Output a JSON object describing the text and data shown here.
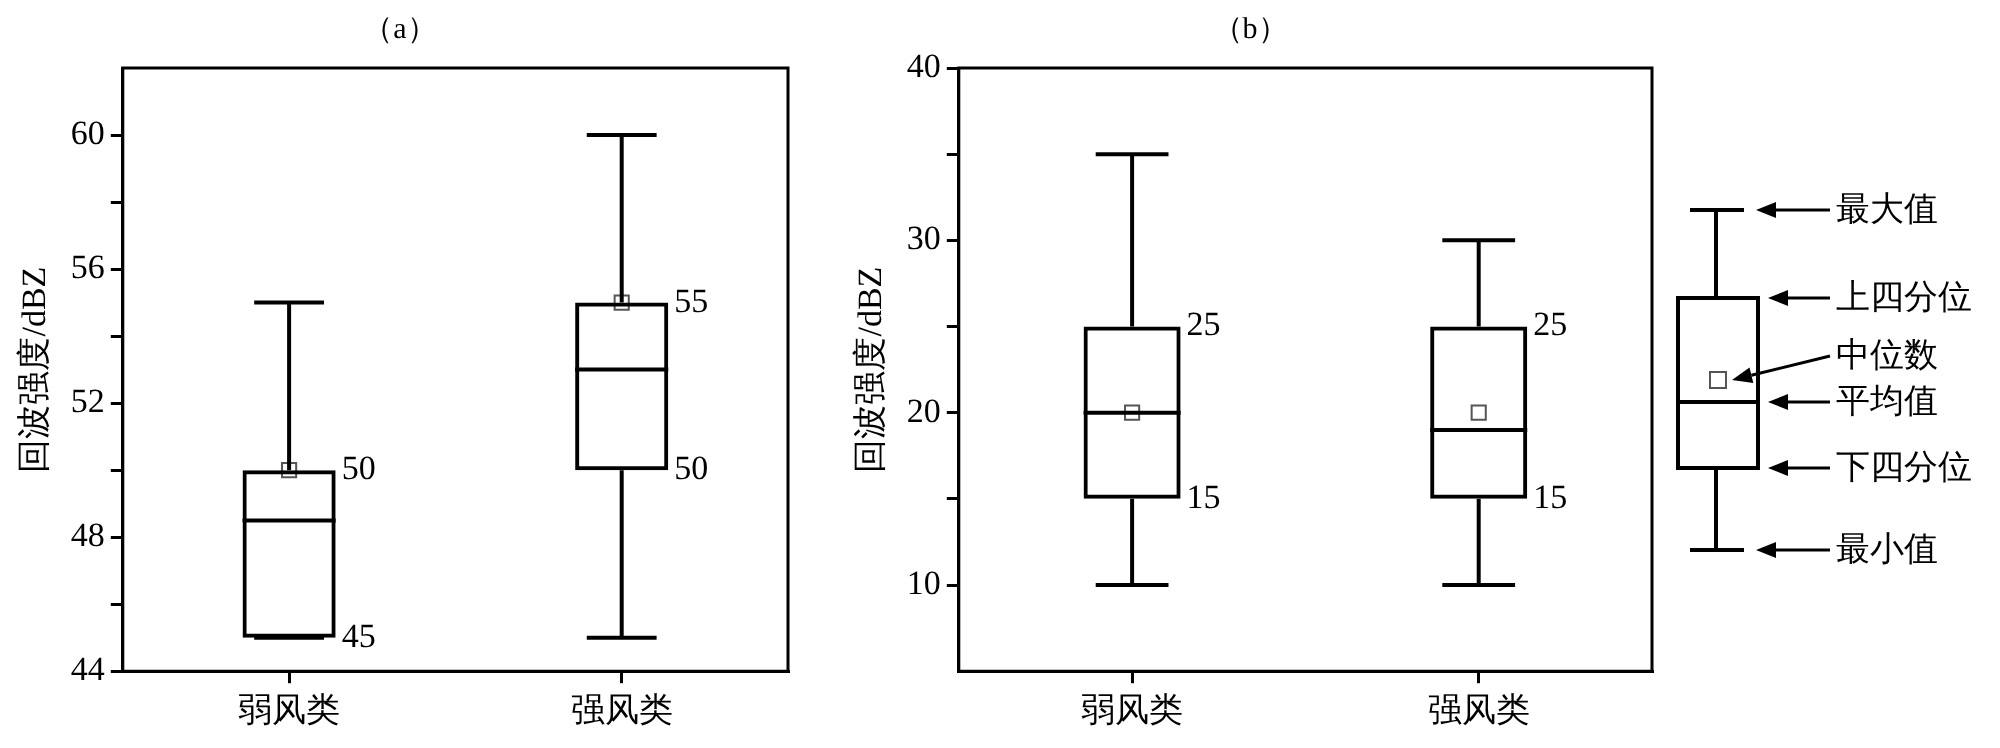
{
  "chart_data": [
    {
      "type": "box",
      "title": "（a）",
      "ylabel": "回波强度/dBZ",
      "categories": [
        "弱风类",
        "强风类"
      ],
      "color": "#000000",
      "marker": "square",
      "boxes": [
        {
          "low": 45,
          "q1": 45,
          "median": 48.5,
          "q3": 50,
          "high": 55,
          "mean": 50
        },
        {
          "low": 45,
          "q1": 50,
          "median": 53,
          "q3": 55,
          "high": 60,
          "mean": 55
        }
      ],
      "ylim": [
        44,
        62
      ],
      "yticks": [
        44,
        {
          "value": 46,
          "label": null
        },
        48,
        {
          "value": 50,
          "label": null
        },
        52,
        {
          "value": 54,
          "label": null
        },
        56,
        {
          "value": 58,
          "label": null
        },
        60
      ],
      "annotations": [
        {
          "text": "50",
          "x": "弱风类",
          "y": 50
        },
        {
          "text": "45",
          "x": "弱风类",
          "y": 45
        },
        {
          "text": "55",
          "x": "强风类",
          "y": 55
        },
        {
          "text": "50",
          "x": "强风类",
          "y": 50
        }
      ]
    },
    {
      "type": "box",
      "title": "（b）",
      "ylabel": "回波强度/dBZ",
      "categories": [
        "弱风类",
        "强风类"
      ],
      "color": "#000000",
      "marker": "square",
      "boxes": [
        {
          "low": 10,
          "q1": 15,
          "median": 20,
          "q3": 25,
          "high": 35,
          "mean": 20
        },
        {
          "low": 10,
          "q1": 15,
          "median": 19,
          "q3": 25,
          "high": 30,
          "mean": 20
        }
      ],
      "ylim": [
        5,
        40
      ],
      "yticks": [
        10,
        {
          "value": 15,
          "label": null
        },
        20,
        {
          "value": 25,
          "label": null
        },
        30,
        {
          "value": 35,
          "label": null
        },
        40
      ],
      "annotations": [
        {
          "text": "25",
          "x": "弱风类",
          "y": 25
        },
        {
          "text": "15",
          "x": "弱风类",
          "y": 15
        },
        {
          "text": "25",
          "x": "强风类",
          "y": 25
        },
        {
          "text": "15",
          "x": "强风类",
          "y": 15
        }
      ]
    },
    {
      "type": "other",
      "annotations": [
        "最大值",
        "上四分位",
        "中位数",
        "平均值",
        "下四分位",
        "最小值"
      ]
    }
  ]
}
